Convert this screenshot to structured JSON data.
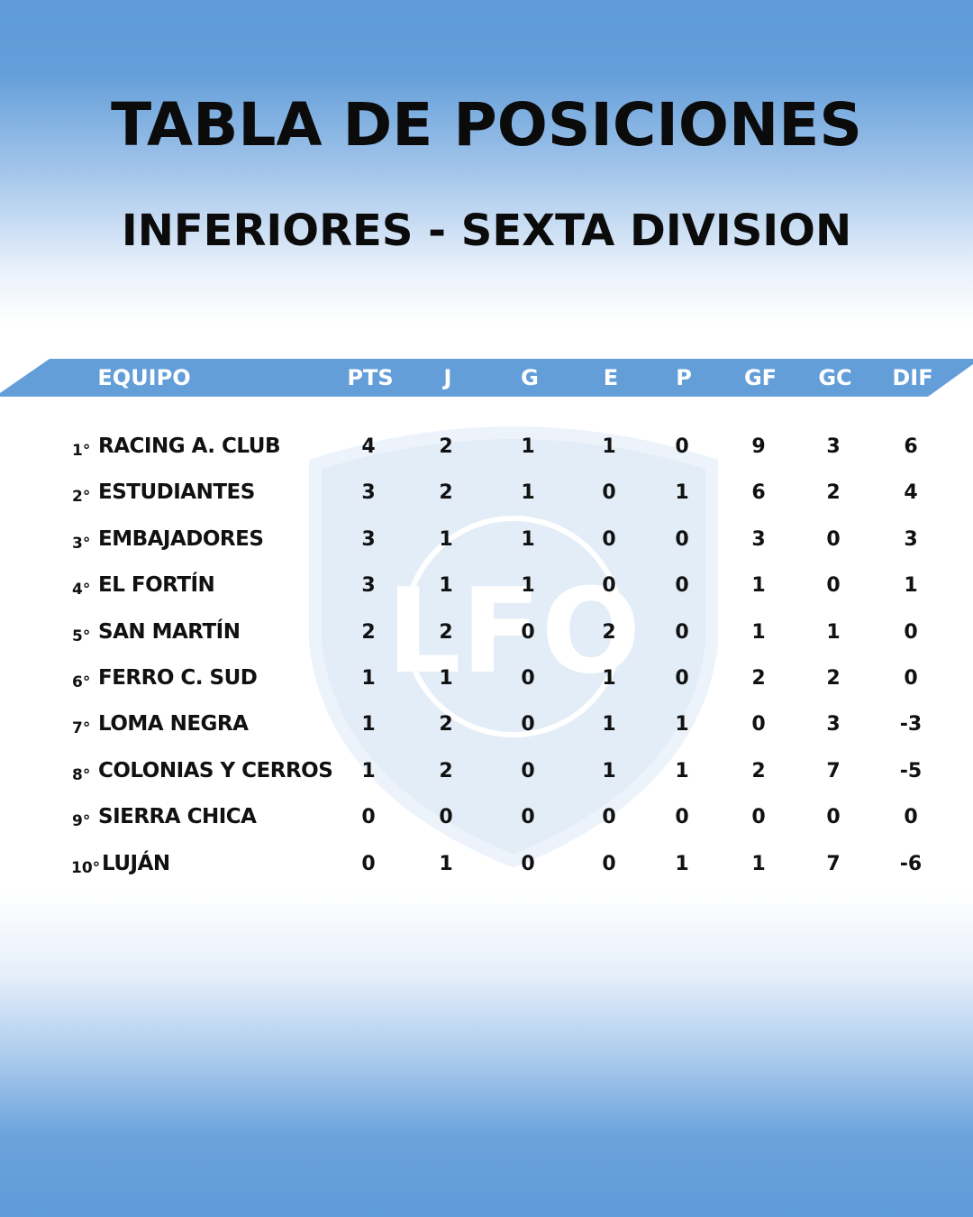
{
  "title": "TABLA DE POSICIONES",
  "subtitle": "INFERIORES - SEXTA DIVISION",
  "colors": {
    "accent_blue": "#639ed9",
    "text": "#0b0b0b",
    "header_text": "#ffffff"
  },
  "watermark": {
    "icon": "league-shield-logo",
    "text": "LFO"
  },
  "table": {
    "headers": [
      "EQUIPO",
      "PTS",
      "J",
      "G",
      "E",
      "P",
      "GF",
      "GC",
      "DIF"
    ],
    "rows": [
      {
        "pos": "1°",
        "team": "RACING A. CLUB",
        "stats": [
          "4",
          "2",
          "1",
          "1",
          "0",
          "9",
          "3",
          "6"
        ]
      },
      {
        "pos": "2°",
        "team": "ESTUDIANTES",
        "stats": [
          "3",
          "2",
          "1",
          "0",
          "1",
          "6",
          "2",
          "4"
        ]
      },
      {
        "pos": "3°",
        "team": "EMBAJADORES",
        "stats": [
          "3",
          "1",
          "1",
          "0",
          "0",
          "3",
          "0",
          "3"
        ]
      },
      {
        "pos": "4°",
        "team": "EL FORTÍN",
        "stats": [
          "3",
          "1",
          "1",
          "0",
          "0",
          "1",
          "0",
          "1"
        ]
      },
      {
        "pos": "5°",
        "team": "SAN MARTÍN",
        "stats": [
          "2",
          "2",
          "0",
          "2",
          "0",
          "1",
          "1",
          "0"
        ]
      },
      {
        "pos": "6°",
        "team": "FERRO C. SUD",
        "stats": [
          "1",
          "1",
          "0",
          "1",
          "0",
          "2",
          "2",
          "0"
        ]
      },
      {
        "pos": "7°",
        "team": "LOMA NEGRA",
        "stats": [
          "1",
          "2",
          "0",
          "1",
          "1",
          "0",
          "3",
          "-3"
        ]
      },
      {
        "pos": "8°",
        "team": "COLONIAS Y CERROS",
        "stats": [
          "1",
          "2",
          "0",
          "1",
          "1",
          "2",
          "7",
          "-5"
        ]
      },
      {
        "pos": "9°",
        "team": "SIERRA CHICA",
        "stats": [
          "0",
          "0",
          "0",
          "0",
          "0",
          "0",
          "0",
          "0"
        ]
      },
      {
        "pos": "10°",
        "team": "LUJÁN",
        "stats": [
          "0",
          "1",
          "0",
          "0",
          "1",
          "1",
          "7",
          "-6"
        ]
      }
    ]
  }
}
